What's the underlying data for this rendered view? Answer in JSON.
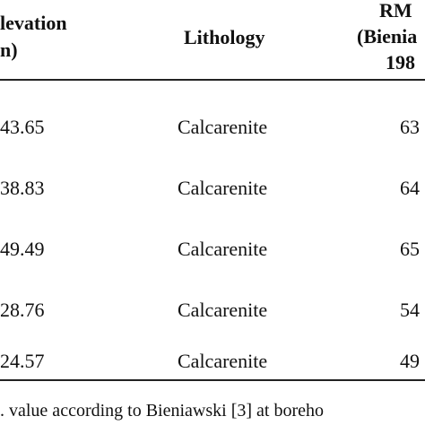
{
  "table": {
    "header": [
      [
        "levation",
        "n)"
      ],
      [
        "Lithology"
      ],
      [
        "RM",
        "(Bienia",
        "198"
      ]
    ],
    "rows": [
      [
        "43.65",
        "Calcarenite",
        "63"
      ],
      [
        "38.83",
        "Calcarenite",
        "64"
      ],
      [
        "49.49",
        "Calcarenite",
        "65"
      ],
      [
        "28.76",
        "Calcarenite",
        "54"
      ],
      [
        "24.57",
        "Calcarenite",
        "49"
      ]
    ],
    "footnote": ". value according to Bieniawski [3] at boreho"
  }
}
